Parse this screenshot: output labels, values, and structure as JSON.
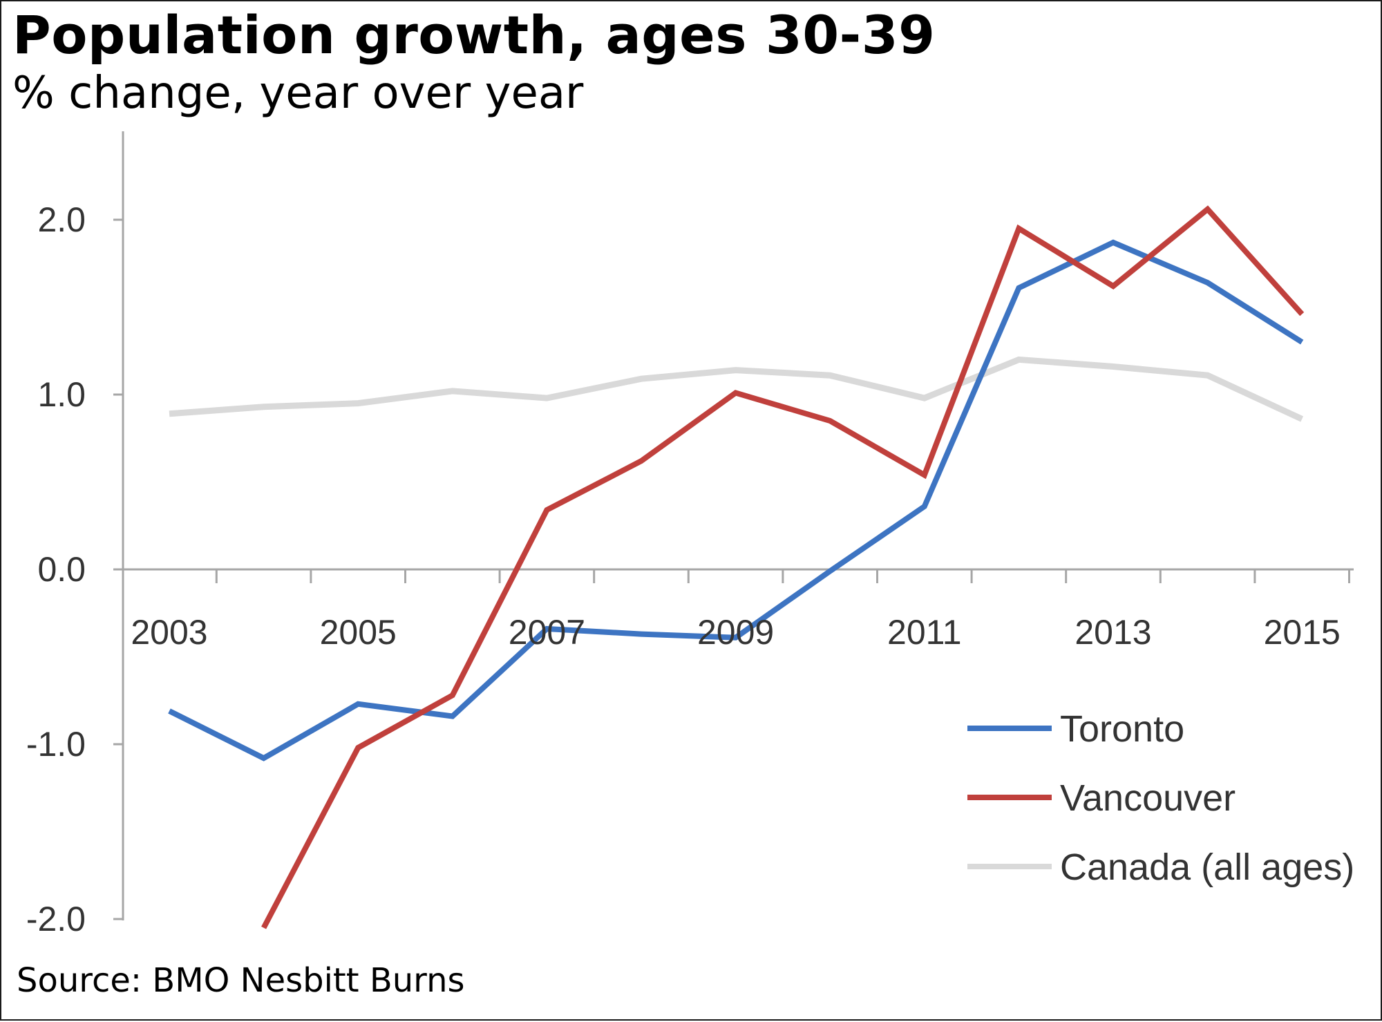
{
  "title": "Population growth, ages 30-39",
  "subtitle": "% change, year over year",
  "source": "Source: BMO Nesbitt Burns",
  "chart_data": {
    "type": "line",
    "x": [
      2003,
      2004,
      2005,
      2006,
      2007,
      2008,
      2009,
      2010,
      2011,
      2012,
      2013,
      2014,
      2015
    ],
    "xticks": [
      "2003",
      "2005",
      "2007",
      "2009",
      "2011",
      "2013",
      "2015"
    ],
    "yticks": [
      "2.0",
      "1.0",
      "0.0",
      "-1.0",
      "-2.0"
    ],
    "ylim": [
      -2.0,
      2.5
    ],
    "series": [
      {
        "name": "Toronto",
        "color": "#3d74c2",
        "values": [
          -0.81,
          -1.08,
          -0.77,
          -0.84,
          -0.34,
          -0.37,
          -0.39,
          -0.01,
          0.36,
          1.61,
          1.87,
          1.64,
          1.3
        ]
      },
      {
        "name": "Vancouver",
        "color": "#c0403c",
        "values": [
          null,
          -2.05,
          -1.02,
          -0.72,
          0.34,
          0.62,
          1.01,
          0.85,
          0.54,
          1.95,
          1.62,
          2.06,
          1.46
        ]
      },
      {
        "name": "Canada (all ages)",
        "color": "#d9d9d9",
        "values": [
          0.89,
          0.93,
          0.95,
          1.02,
          0.98,
          1.09,
          1.14,
          1.11,
          0.98,
          1.2,
          1.16,
          1.11,
          0.86
        ]
      }
    ],
    "legend_position": "bottom-right",
    "grid": false
  }
}
